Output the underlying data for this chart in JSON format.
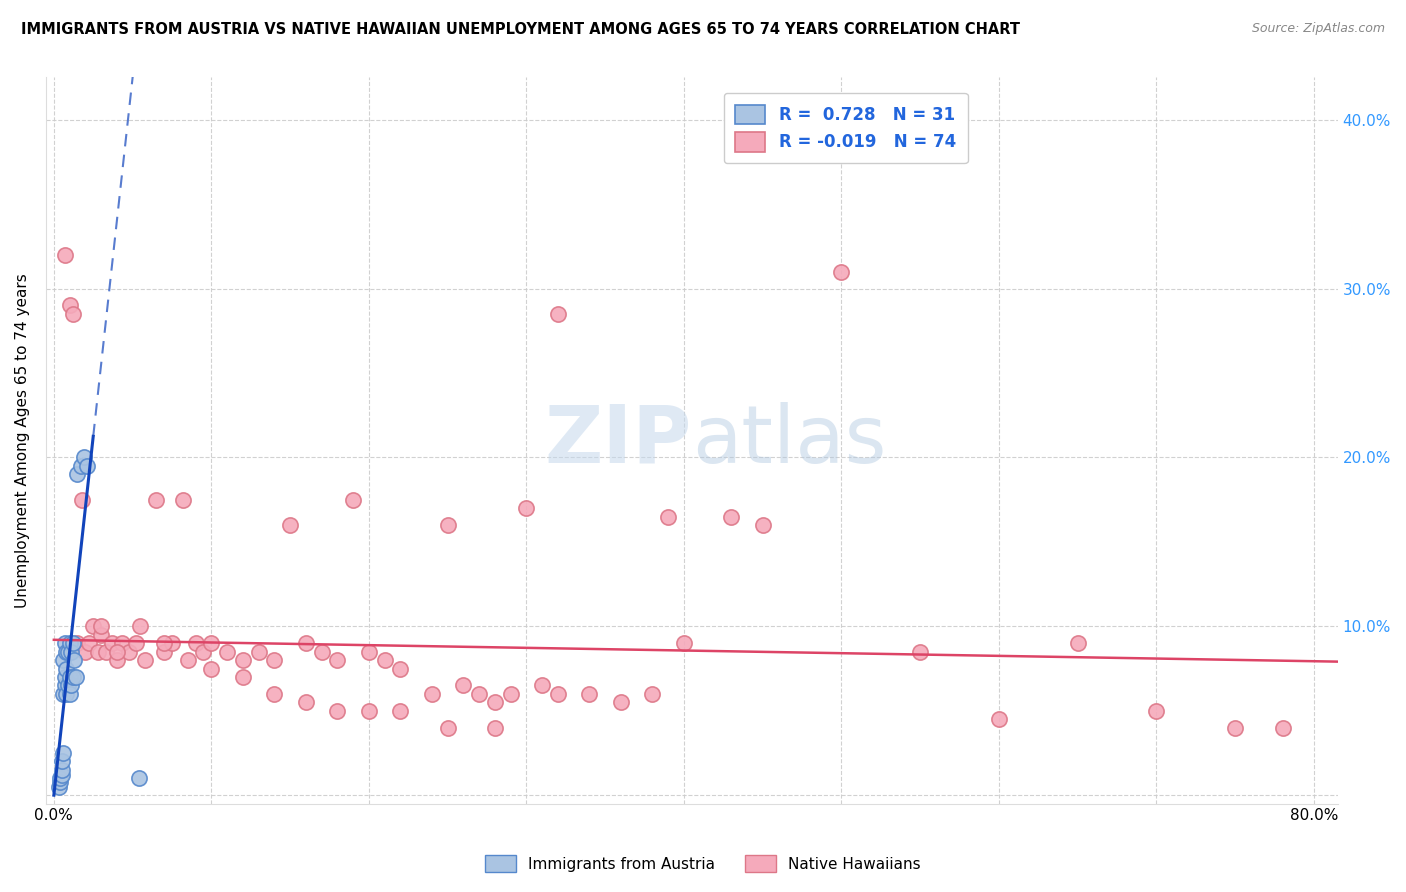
{
  "title": "IMMIGRANTS FROM AUSTRIA VS NATIVE HAWAIIAN UNEMPLOYMENT AMONG AGES 65 TO 74 YEARS CORRELATION CHART",
  "source": "Source: ZipAtlas.com",
  "ylabel": "Unemployment Among Ages 65 to 74 years",
  "xlim": [
    -0.005,
    0.815
  ],
  "ylim": [
    -0.005,
    0.425
  ],
  "xtick_positions": [
    0.0,
    0.1,
    0.2,
    0.3,
    0.4,
    0.5,
    0.6,
    0.7,
    0.8
  ],
  "xticklabels": [
    "0.0%",
    "",
    "",
    "",
    "",
    "",
    "",
    "",
    "80.0%"
  ],
  "ytick_positions": [
    0.0,
    0.1,
    0.2,
    0.3,
    0.4
  ],
  "yticklabels_right": [
    "",
    "10.0%",
    "20.0%",
    "30.0%",
    "40.0%"
  ],
  "austria_R": 0.728,
  "austria_N": 31,
  "native_R": -0.019,
  "native_N": 74,
  "austria_face": "#aac4e2",
  "austria_edge": "#5588cc",
  "native_face": "#f5aabb",
  "native_edge": "#dd7788",
  "trend_austria_color": "#1144bb",
  "trend_native_color": "#dd4466",
  "watermark_color": "#c5d8ec",
  "legend_text_color": "#2266dd",
  "right_axis_color": "#3399ff",
  "austria_x": [
    0.003,
    0.004,
    0.004,
    0.005,
    0.005,
    0.005,
    0.006,
    0.006,
    0.006,
    0.007,
    0.007,
    0.007,
    0.008,
    0.008,
    0.008,
    0.009,
    0.009,
    0.01,
    0.01,
    0.01,
    0.011,
    0.011,
    0.012,
    0.012,
    0.013,
    0.014,
    0.015,
    0.017,
    0.019,
    0.021,
    0.054
  ],
  "austria_y": [
    0.005,
    0.008,
    0.01,
    0.012,
    0.015,
    0.02,
    0.025,
    0.06,
    0.08,
    0.065,
    0.07,
    0.09,
    0.06,
    0.075,
    0.085,
    0.065,
    0.085,
    0.06,
    0.07,
    0.09,
    0.065,
    0.085,
    0.07,
    0.09,
    0.08,
    0.07,
    0.19,
    0.195,
    0.2,
    0.195,
    0.01
  ],
  "native_x": [
    0.007,
    0.01,
    0.012,
    0.015,
    0.018,
    0.02,
    0.022,
    0.025,
    0.028,
    0.03,
    0.033,
    0.037,
    0.04,
    0.043,
    0.048,
    0.052,
    0.058,
    0.065,
    0.07,
    0.075,
    0.082,
    0.09,
    0.095,
    0.1,
    0.11,
    0.12,
    0.13,
    0.14,
    0.15,
    0.16,
    0.17,
    0.18,
    0.19,
    0.2,
    0.21,
    0.22,
    0.24,
    0.25,
    0.26,
    0.27,
    0.28,
    0.29,
    0.3,
    0.31,
    0.32,
    0.34,
    0.36,
    0.38,
    0.4,
    0.45,
    0.5,
    0.55,
    0.6,
    0.65,
    0.7,
    0.75,
    0.78,
    0.03,
    0.04,
    0.055,
    0.07,
    0.085,
    0.1,
    0.12,
    0.14,
    0.16,
    0.18,
    0.2,
    0.22,
    0.25,
    0.28,
    0.32,
    0.39,
    0.43
  ],
  "native_y": [
    0.32,
    0.29,
    0.285,
    0.09,
    0.175,
    0.085,
    0.09,
    0.1,
    0.085,
    0.095,
    0.085,
    0.09,
    0.08,
    0.09,
    0.085,
    0.09,
    0.08,
    0.175,
    0.085,
    0.09,
    0.175,
    0.09,
    0.085,
    0.09,
    0.085,
    0.08,
    0.085,
    0.08,
    0.16,
    0.09,
    0.085,
    0.08,
    0.175,
    0.085,
    0.08,
    0.075,
    0.06,
    0.16,
    0.065,
    0.06,
    0.055,
    0.06,
    0.17,
    0.065,
    0.06,
    0.06,
    0.055,
    0.06,
    0.09,
    0.16,
    0.31,
    0.085,
    0.045,
    0.09,
    0.05,
    0.04,
    0.04,
    0.1,
    0.085,
    0.1,
    0.09,
    0.08,
    0.075,
    0.07,
    0.06,
    0.055,
    0.05,
    0.05,
    0.05,
    0.04,
    0.04,
    0.285,
    0.165,
    0.165
  ],
  "trend_a_x0": -0.002,
  "trend_a_x1": 0.025,
  "trend_a_slope": 8.5,
  "trend_a_intercept": 0.0,
  "trend_n_x0": 0.0,
  "trend_n_x1": 0.82,
  "trend_n_y0": 0.092,
  "trend_n_y1": 0.079
}
